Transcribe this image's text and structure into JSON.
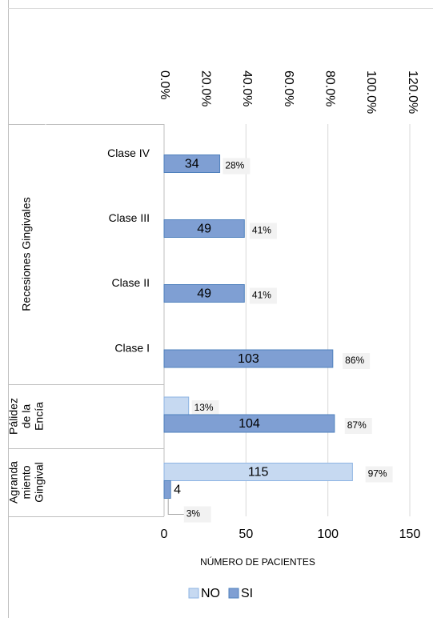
{
  "chart_data": {
    "type": "hbar",
    "categories": [
      "Clase IV",
      "Clase III",
      "Clase II",
      "Clase I",
      null,
      null
    ],
    "groups": [
      {
        "lines": [
          "Recesiones Gingivales"
        ]
      },
      {
        "lines": [
          "Pálidez",
          "de la",
          "Encía"
        ]
      },
      {
        "lines": [
          "Agranda",
          "miento",
          "Gingival"
        ]
      }
    ],
    "series": [
      {
        "name": "NO",
        "color": "#c6d9f1",
        "edge": "#8eb4e3",
        "values": [
          null,
          null,
          null,
          null,
          15,
          115
        ],
        "percents": [
          null,
          null,
          null,
          null,
          13,
          97
        ],
        "percent_labels": [
          null,
          null,
          null,
          null,
          "13%",
          "97%"
        ]
      },
      {
        "name": "SI",
        "color": "#7f9fd3",
        "edge": "#4f81bd",
        "values": [
          34,
          49,
          49,
          103,
          104,
          4
        ],
        "percents": [
          28,
          41,
          41,
          86,
          87,
          3
        ],
        "percent_labels": [
          "28%",
          "41%",
          "41%",
          "86%",
          "87%",
          "3%"
        ]
      }
    ],
    "xlabel": "NÚMERO DE PACIENTES",
    "xlim": [
      0,
      150
    ],
    "xticks": [
      0,
      50,
      100,
      150
    ],
    "x2lim": [
      0,
      120
    ],
    "x2ticks": [
      {
        "value": 0,
        "label": "0.0%"
      },
      {
        "value": 20,
        "label": "20.0%"
      },
      {
        "value": 40,
        "label": "40.0%"
      },
      {
        "value": 60,
        "label": "60.0%"
      },
      {
        "value": 80,
        "label": "80.0%"
      },
      {
        "value": 100,
        "label": "100.0%"
      },
      {
        "value": 120,
        "label": "120.0%"
      }
    ],
    "grid": true,
    "legend": "bottom"
  }
}
